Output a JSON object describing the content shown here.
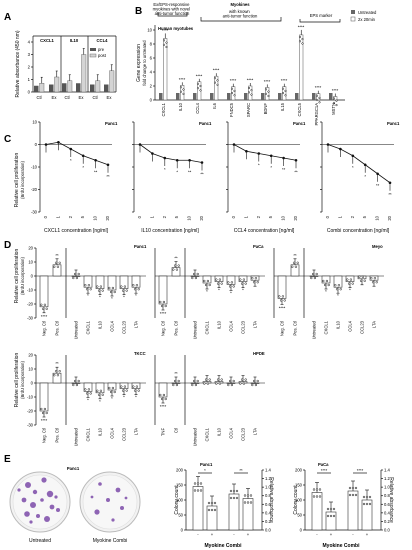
{
  "panels": {
    "A": "A",
    "B": "B",
    "C": "C",
    "D": "D",
    "E": "E"
  },
  "panelA": {
    "ylabel": "Relative absorbance (450 nm)",
    "groups": [
      "CXCL1",
      "IL10",
      "CCL4"
    ],
    "xticks": [
      "Ctl",
      "Ex",
      "Ctl",
      "Ex",
      "Ctl",
      "Ex"
    ],
    "legend": [
      "pre",
      "post"
    ],
    "yticks": [
      "0",
      "1",
      "2",
      "3",
      "4"
    ]
  },
  "panelB": {
    "ylabel": "Gene expression",
    "ylabel2": "fold change to untreated",
    "header_left": "Ex/EPS-responsive myokines with novel anti-tumor function",
    "header_top": "Myokines",
    "header_mid": "with known anti-tumor function",
    "header_right": "EPS marker",
    "inner_title": "Human myotubes",
    "legend": [
      "Untreated",
      "2x 20min"
    ],
    "genes": [
      "CXCL1",
      "IL10",
      "CCL4",
      "IL6",
      "FNDC5",
      "SPARC",
      "BDNF",
      "IL15",
      "CXCL5",
      "PPARGC1A",
      "MSTN"
    ],
    "yticks": [
      "0",
      "2",
      "4",
      "6",
      "8",
      "10"
    ]
  },
  "panelC": {
    "ylabel": "Relative cell proliferation",
    "ylabel2": "(BrdU incorporation)",
    "plots": [
      {
        "title": "Panc1",
        "xlabel": "CXCL1 concentration [ng/ml]"
      },
      {
        "title": "Panc1",
        "xlabel": "IL10 concentration [ng/ml]"
      },
      {
        "title": "Panc1",
        "xlabel": "CCL4 concentration [ng/ml]"
      },
      {
        "title": "Panc1",
        "xlabel": "Combi concentration [ng/ml]"
      }
    ],
    "xticks": [
      "0",
      "1",
      "2",
      "5",
      "10",
      "20"
    ],
    "yticks": [
      "10",
      "0",
      "-10",
      "-20",
      "-30"
    ]
  },
  "panelD": {
    "ylabel": "Relative cell proliferation",
    "ylabel2": "(BrdU incorporation)",
    "row1": [
      {
        "title": "Panc1"
      },
      {
        "title": "PaCa"
      },
      {
        "title": "Meyo"
      }
    ],
    "row2": [
      {
        "title": "TKCC"
      },
      {
        "title": "HPDE"
      }
    ],
    "xticks": [
      "Neg. Ctl",
      "Pos. Ctl",
      "Untreated",
      "CXCL1",
      "IL10",
      "CCL4",
      "CCL23",
      "LTA"
    ],
    "xticks_hpde": [
      "TNF",
      "Ctl",
      "Untreated",
      "CXCL1",
      "IL10",
      "CCL4",
      "CCL23",
      "LTA"
    ],
    "yticks": [
      "20",
      "10",
      "0",
      "-10",
      "-20",
      "-30"
    ]
  },
  "panelE": {
    "dish_labels": [
      "Untreated",
      "Myokine Combi"
    ],
    "dish_title": "Panc1",
    "chart1": {
      "title": "Panc1",
      "ylabel": "Colony count",
      "ylabel_r": "Relative absorbance",
      "xlabel": "Myokine Combi"
    },
    "chart2": {
      "title": "PaCa",
      "ylabel": "Colony count",
      "ylabel_r": "Relative absorbance",
      "xlabel": "Myokine Combi"
    },
    "signs": [
      "-",
      "+",
      "-",
      "+"
    ]
  },
  "chart_data": [
    {
      "type": "bar",
      "title": "A",
      "categories": [
        "CXCL1 Ctl",
        "CXCL1 Ex",
        "IL10 Ctl",
        "IL10 Ex",
        "CCL4 Ctl",
        "CCL4 Ex"
      ],
      "series": [
        {
          "name": "pre",
          "values": [
            0.5,
            0.6,
            0.7,
            0.7,
            0.6,
            0.6
          ]
        },
        {
          "name": "post",
          "values": [
            0.7,
            1.2,
            0.9,
            3.0,
            0.9,
            1.7
          ]
        }
      ],
      "ylabel": "Relative absorbance (450 nm)",
      "ylim": [
        0,
        4
      ]
    },
    {
      "type": "bar",
      "title": "B",
      "categories": [
        "CXCL1",
        "IL10",
        "CCL4",
        "IL6",
        "FNDC5",
        "SPARC",
        "BDNF",
        "IL15",
        "CXCL5",
        "PPARGC1A",
        "MSTN"
      ],
      "series": [
        {
          "name": "Untreated",
          "values": [
            1,
            1,
            1,
            1,
            1,
            1,
            1,
            1,
            1,
            1,
            1
          ]
        },
        {
          "name": "2x 20min",
          "values": [
            8.8,
            2.1,
            2.6,
            3.4,
            1.9,
            2.0,
            1.8,
            1.9,
            9.3,
            0.9,
            0.5
          ]
        }
      ],
      "ylabel": "Gene expression",
      "ylim": [
        0,
        10
      ]
    },
    {
      "type": "line",
      "title": "C",
      "x": [
        "0",
        "1",
        "2",
        "5",
        "10",
        "20"
      ],
      "series": [
        {
          "name": "CXCL1",
          "values": [
            0,
            1,
            -2,
            -5,
            -7,
            -9
          ]
        },
        {
          "name": "IL10",
          "values": [
            0,
            -4,
            -6,
            -7,
            -7,
            -8
          ]
        },
        {
          "name": "CCL4",
          "values": [
            0,
            -3,
            -4,
            -5,
            -6,
            -7
          ]
        },
        {
          "name": "Combi",
          "values": [
            0,
            -2,
            -5,
            -9,
            -13,
            -17
          ]
        }
      ],
      "ylim": [
        -30,
        10
      ]
    },
    {
      "type": "bar",
      "title": "D Panc1",
      "categories": [
        "Neg. Ctl",
        "Pos. Ctl",
        "Untreated",
        "CXCL1",
        "IL10",
        "CCL4",
        "CCL23",
        "LTA"
      ],
      "values": [
        -22,
        8,
        0,
        -8,
        -9,
        -10,
        -9,
        -8
      ],
      "ylim": [
        -30,
        20
      ]
    },
    {
      "type": "bar",
      "title": "D PaCa",
      "categories": [
        "Neg. Ctl",
        "Pos. Ctl",
        "Untreated",
        "CXCL1",
        "IL10",
        "CCL4",
        "CCL23",
        "LTA"
      ],
      "values": [
        -20,
        6,
        0,
        -5,
        -4,
        -6,
        -4,
        -3
      ],
      "ylim": [
        -30,
        20
      ]
    },
    {
      "type": "bar",
      "title": "D Meyo",
      "categories": [
        "Neg. Ctl",
        "Pos. Ctl",
        "Untreated",
        "CXCL1",
        "IL10",
        "CCL4",
        "CCL23",
        "LTA"
      ],
      "values": [
        -16,
        8,
        0,
        -5,
        -8,
        -4,
        -2,
        -3
      ],
      "ylim": [
        -30,
        20
      ]
    },
    {
      "type": "bar",
      "title": "D TKCC",
      "categories": [
        "Neg. Ctl",
        "Pos. Ctl",
        "Untreated",
        "CXCL1",
        "IL10",
        "CCL4",
        "CCL23",
        "LTA"
      ],
      "values": [
        -20,
        7,
        0,
        -6,
        -7,
        -5,
        -4,
        -4
      ],
      "ylim": [
        -30,
        20
      ]
    },
    {
      "type": "bar",
      "title": "D HPDE",
      "categories": [
        "TNF",
        "Ctl",
        "Untreated",
        "CXCL1",
        "IL10",
        "CCL4",
        "CCL23",
        "LTA"
      ],
      "values": [
        -10,
        0,
        0,
        1,
        1,
        0,
        1,
        0
      ],
      "ylim": [
        -30,
        20
      ]
    },
    {
      "type": "bar",
      "title": "E Panc1",
      "categories": [
        "-",
        "+",
        "-",
        "+"
      ],
      "values": [
        145,
        80,
        120,
        105
      ],
      "ylim": [
        0,
        200
      ]
    },
    {
      "type": "bar",
      "title": "E PaCa",
      "categories": [
        "-",
        "+",
        "-",
        "+"
      ],
      "values": [
        125,
        60,
        130,
        100
      ],
      "ylim": [
        0,
        200
      ]
    }
  ]
}
